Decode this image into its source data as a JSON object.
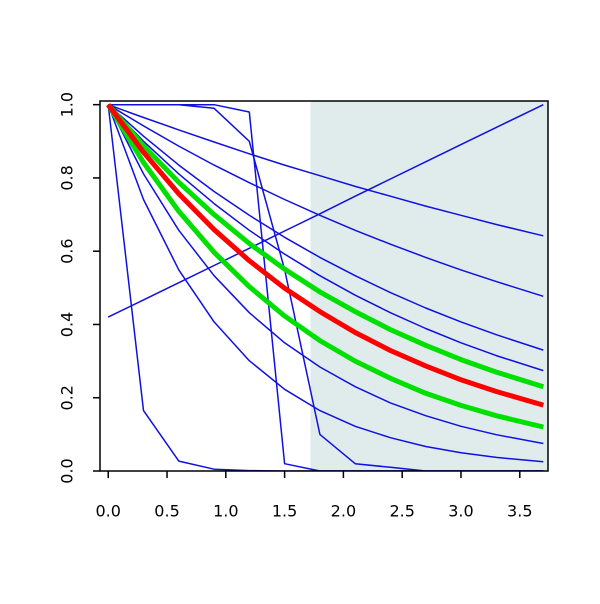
{
  "chart_data": {
    "type": "line",
    "xlim": [
      -0.07,
      3.74
    ],
    "ylim": [
      0,
      1.01
    ],
    "xticks": [
      {
        "value": 0,
        "label": "0.0"
      },
      {
        "value": 0.5,
        "label": "0.5"
      },
      {
        "value": 1,
        "label": "1.0"
      },
      {
        "value": 1.5,
        "label": "1.5"
      },
      {
        "value": 2,
        "label": "2.0"
      },
      {
        "value": 2.5,
        "label": "2.5"
      },
      {
        "value": 3,
        "label": "3.0"
      },
      {
        "value": 3.5,
        "label": "3.5"
      }
    ],
    "yticks": [
      {
        "value": 0,
        "label": "0.0"
      },
      {
        "value": 0.2,
        "label": "0.2"
      },
      {
        "value": 0.4,
        "label": "0.4"
      },
      {
        "value": 0.6,
        "label": "0.6"
      },
      {
        "value": 0.8,
        "label": "0.8"
      },
      {
        "value": 1,
        "label": "1.0"
      }
    ],
    "shaded_xlim": [
      1.72,
      3.74
    ],
    "shaded_color": "#e0ecec",
    "x": [
      0,
      0.3,
      0.6,
      0.9,
      1.2,
      1.5,
      1.8,
      2.1,
      2.4,
      2.7,
      3.0,
      3.3,
      3.7
    ],
    "series": [
      {
        "color": "#1010e0",
        "line_width": 1.5,
        "values": [
          1,
          0.965,
          0.931,
          0.898,
          0.866,
          0.835,
          0.806,
          0.777,
          0.75,
          0.723,
          0.698,
          0.673,
          0.642
        ]
      },
      {
        "color": "#1010e0",
        "line_width": 1.5,
        "values": [
          1,
          0.942,
          0.887,
          0.835,
          0.787,
          0.741,
          0.698,
          0.657,
          0.619,
          0.583,
          0.549,
          0.517,
          0.477
        ]
      },
      {
        "color": "#1010e0",
        "line_width": 1.5,
        "values": [
          1,
          0.914,
          0.835,
          0.763,
          0.698,
          0.638,
          0.583,
          0.533,
          0.487,
          0.445,
          0.407,
          0.372,
          0.33
        ]
      },
      {
        "color": "#1010e0",
        "line_width": 1.5,
        "values": [
          1,
          0.9,
          0.811,
          0.73,
          0.657,
          0.592,
          0.533,
          0.48,
          0.432,
          0.389,
          0.35,
          0.315,
          0.274
        ]
      },
      {
        "color": "#1010e0",
        "line_width": 1.5,
        "values": [
          1,
          0.811,
          0.657,
          0.533,
          0.432,
          0.35,
          0.284,
          0.23,
          0.186,
          0.151,
          0.122,
          0.099,
          0.075
        ]
      },
      {
        "color": "#1010e0",
        "line_width": 1.5,
        "values": [
          1,
          0.741,
          0.549,
          0.407,
          0.301,
          0.223,
          0.165,
          0.122,
          0.091,
          0.067,
          0.05,
          0.037,
          0.025
        ]
      },
      {
        "color": "#1010e0",
        "line_width": 1.5,
        "values": [
          1,
          0.165,
          0.027,
          0.005,
          0.001,
          0,
          0,
          0,
          0,
          0,
          0,
          0,
          0
        ]
      },
      {
        "color": "#1010e0",
        "line_width": 1.5,
        "values": [
          1,
          1,
          1,
          1,
          0.98,
          0.02,
          0,
          0,
          0,
          0,
          0,
          0,
          0
        ]
      },
      {
        "color": "#1010e0",
        "line_width": 1.5,
        "values": [
          1,
          1,
          1,
          0.99,
          0.9,
          0.55,
          0.1,
          0.02,
          0.01,
          0,
          0,
          0,
          0
        ]
      },
      {
        "color": "#1010e0",
        "line_width": 1.5,
        "values": [
          0.42,
          0.467,
          0.514,
          0.561,
          0.608,
          0.655,
          0.702,
          0.75,
          0.797,
          0.844,
          0.891,
          0.938,
          1.0
        ]
      },
      {
        "color": "#00e000",
        "line_width": 5,
        "values": [
          1,
          0.888,
          0.788,
          0.7,
          0.621,
          0.551,
          0.489,
          0.435,
          0.386,
          0.343,
          0.304,
          0.27,
          0.23
        ]
      },
      {
        "color": "#00e000",
        "line_width": 5,
        "values": [
          1,
          0.842,
          0.709,
          0.597,
          0.503,
          0.423,
          0.356,
          0.3,
          0.253,
          0.212,
          0.179,
          0.151,
          0.12
        ]
      },
      {
        "color": "#ff0000",
        "line_width": 5,
        "values": [
          1,
          0.87,
          0.757,
          0.659,
          0.574,
          0.499,
          0.435,
          0.378,
          0.329,
          0.287,
          0.249,
          0.217,
          0.18
        ]
      }
    ]
  }
}
